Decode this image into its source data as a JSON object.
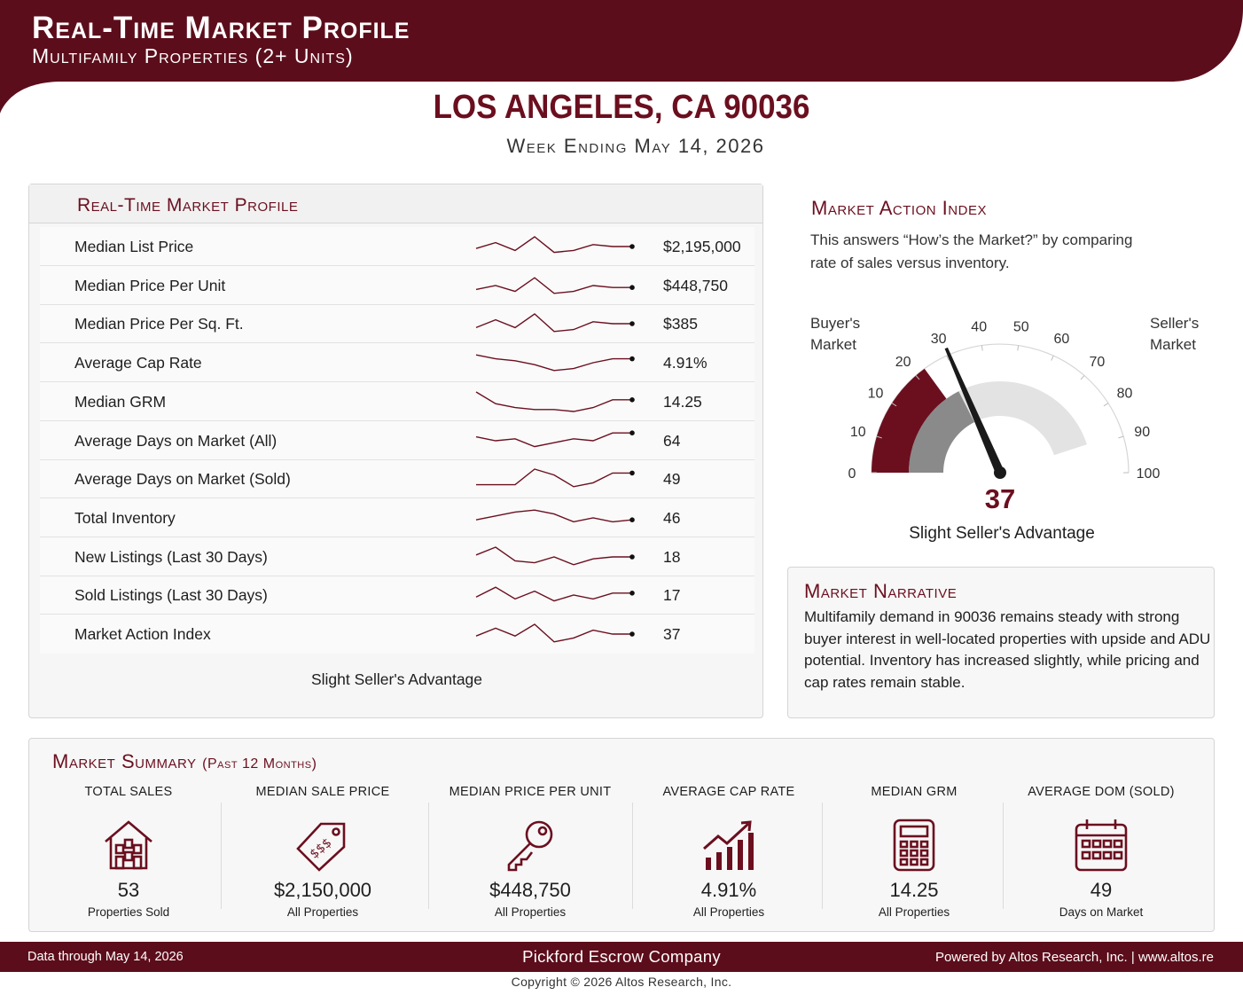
{
  "header": {
    "title": "Real-Time Market Profile",
    "subtitle": "Multifamily Properties (2+ Units)",
    "location": "LOS ANGELES, CA 90036",
    "week_ending": "Week Ending May 14, 2026"
  },
  "colors": {
    "brand": "#5c0d1b",
    "accent": "#6b0f1f",
    "gauge_gray": "#8a8a8a",
    "gauge_light": "#e3e3e3"
  },
  "profile": {
    "title": "Real-Time Market Profile",
    "rows": [
      {
        "label": "Median List Price",
        "value": "$2,195,000",
        "trend": [
          6,
          3,
          7,
          0,
          8,
          7,
          4,
          5,
          5
        ]
      },
      {
        "label": "Median Price Per Unit",
        "value": "$448,750",
        "trend": [
          7,
          5,
          8,
          1,
          9,
          8,
          5,
          6,
          6
        ]
      },
      {
        "label": "Median Price Per Sq. Ft.",
        "value": "$385",
        "trend": [
          7,
          3,
          7,
          0,
          9,
          8,
          4,
          5,
          5
        ]
      },
      {
        "label": "Average Cap Rate",
        "value": "4.91%",
        "trend": [
          1,
          3,
          4,
          6,
          9,
          8,
          5,
          3,
          3
        ]
      },
      {
        "label": "Median GRM",
        "value": "14.25",
        "trend": [
          0,
          6,
          8,
          9,
          9,
          10,
          8,
          4,
          4
        ]
      },
      {
        "label": "Average Days on Market (All)",
        "value": "64",
        "trend": [
          3,
          5,
          4,
          8,
          6,
          4,
          5,
          1,
          1
        ]
      },
      {
        "label": "Average Days on Market (Sold)",
        "value": "49",
        "trend": [
          8,
          8,
          8,
          0,
          3,
          9,
          7,
          2,
          2
        ]
      },
      {
        "label": "Total Inventory",
        "value": "46",
        "trend": [
          6,
          4,
          2,
          1,
          3,
          7,
          5,
          7,
          6
        ]
      },
      {
        "label": "New Listings (Last 30 Days)",
        "value": "18",
        "trend": [
          4,
          0,
          7,
          8,
          5,
          9,
          6,
          5,
          5
        ]
      },
      {
        "label": "Sold Listings (Last 30 Days)",
        "value": "17",
        "trend": [
          6,
          1,
          7,
          3,
          8,
          5,
          7,
          4,
          4
        ]
      },
      {
        "label": "Market Action Index",
        "value": "37",
        "trend": [
          6,
          2,
          6,
          0,
          9,
          7,
          3,
          5,
          5
        ]
      }
    ],
    "footer": "Slight Seller's Advantage"
  },
  "market_action": {
    "title": "Market Action Index",
    "description": "This answers “How’s the Market?” by comparing rate of sales versus inventory.",
    "buyers_label": "Buyer's Market",
    "sellers_label": "Seller's Market",
    "gauge": {
      "min": 0,
      "max": 100,
      "value": 37,
      "ticks": [
        "0",
        "10",
        "10",
        "20",
        "30",
        "40",
        "50",
        "60",
        "70",
        "80",
        "90",
        "100"
      ]
    },
    "value_label": "37",
    "status": "Slight Seller's Advantage"
  },
  "narrative": {
    "title": "Market Narrative",
    "text": "Multifamily demand in 90036 remains steady with strong buyer interest in well-located properties with upside and ADU potential. Inventory has increased slightly, while pricing and cap rates remain stable."
  },
  "summary": {
    "title": "Market Summary",
    "title_sub": "(Past 12 Months)",
    "metrics": [
      {
        "header": "TOTAL SALES",
        "icon": "house-icon",
        "value": "53",
        "sub": "Properties Sold"
      },
      {
        "header": "MEDIAN SALE PRICE",
        "icon": "price-tag-icon",
        "value": "$2,150,000",
        "sub": "All Properties"
      },
      {
        "header": "MEDIAN PRICE PER UNIT",
        "icon": "key-icon",
        "value": "$448,750",
        "sub": "All Properties"
      },
      {
        "header": "AVERAGE CAP RATE",
        "icon": "growth-chart-icon",
        "value": "4.91%",
        "sub": "All Properties"
      },
      {
        "header": "MEDIAN GRM",
        "icon": "calculator-icon",
        "value": "14.25",
        "sub": "All Properties"
      },
      {
        "header": "AVERAGE DOM (SOLD)",
        "icon": "calendar-icon",
        "value": "49",
        "sub": "Days on Market"
      }
    ]
  },
  "footer": {
    "left": "Data through May 14, 2026",
    "center": "Pickford Escrow Company",
    "right": "Powered by Altos Research, Inc. | www.altos.re",
    "copyright": "Copyright © 2026 Altos Research, Inc."
  }
}
